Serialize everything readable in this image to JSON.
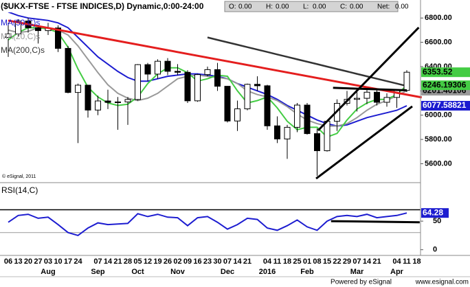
{
  "header": {
    "title": "($UKX-FTSE - FTSE INDICES,D) Dynamic,0:00-24:00",
    "quote": [
      {
        "name": "O:",
        "value": {
          "value": 0,
          "label": "0.00"
        }
      },
      {
        "name": "H:",
        "value": {
          "value": 0,
          "label": "0.00"
        }
      },
      {
        "name": "L:",
        "value": {
          "value": 0,
          "label": "0.00"
        }
      },
      {
        "name": "C:",
        "value": {
          "value": 0,
          "label": "0.00"
        }
      },
      {
        "name": "Net:",
        "value": {
          "value": 0,
          "label": "0.00"
        }
      }
    ]
  },
  "x_axis": {
    "categories": [
      "06",
      "13",
      "20",
      "27",
      "03",
      "10",
      "17",
      "24",
      null,
      "07",
      "14",
      "21",
      "28",
      "05",
      "12",
      "19",
      "26",
      "02",
      "09",
      "16",
      "23",
      "30",
      "07",
      "14",
      "21",
      null,
      "04",
      "11",
      "18",
      "25",
      "01",
      "08",
      "15",
      "22",
      "29",
      "07",
      "14",
      "21",
      null,
      "04",
      "11",
      "18"
    ],
    "month_labels": [
      null,
      null,
      null,
      null,
      "Aug",
      null,
      null,
      null,
      null,
      "Sep",
      null,
      null,
      null,
      "Oct",
      null,
      null,
      null,
      "Nov",
      null,
      null,
      null,
      null,
      "Dec",
      null,
      null,
      null,
      "2016",
      null,
      null,
      null,
      "Feb",
      null,
      null,
      null,
      null,
      "Mar",
      null,
      null,
      null,
      "Apr",
      null,
      null
    ]
  },
  "chart_data": [
    {
      "type": "candlestick",
      "credit": "© eSignal, 2011",
      "up_color": "#ffffff",
      "down_color": "#000000",
      "open": [
        6640,
        6670,
        6775,
        6720,
        6696,
        6718,
        6550,
        6187,
        6247,
        6042,
        6117,
        6105,
        6109,
        6129,
        6416,
        6338,
        6444,
        6361,
        6353,
        6118,
        6334,
        6375,
        6238,
        5952,
        6052,
        6254,
        6242,
        5912,
        5804,
        5900,
        6083,
        5848,
        5707,
        5950,
        6097,
        6130,
        6139,
        6189,
        6106,
        6146,
        6204,
        null
      ],
      "high": [
        6760,
        6790,
        6800,
        6730,
        6760,
        6740,
        6570,
        6260,
        6250,
        6160,
        6210,
        6150,
        6150,
        6420,
        6430,
        6460,
        6470,
        6420,
        6370,
        6340,
        6400,
        6430,
        6240,
        6120,
        6260,
        6320,
        6250,
        5990,
        5920,
        6100,
        6100,
        5890,
        5960,
        6130,
        6200,
        6190,
        6220,
        6210,
        6180,
        6210,
        6370,
        null
      ],
      "low": [
        6480,
        6650,
        6680,
        6590,
        6660,
        6520,
        6180,
        5770,
        5980,
        6000,
        6050,
        5880,
        5920,
        6120,
        6280,
        6300,
        6330,
        6330,
        6100,
        6110,
        6320,
        6200,
        5940,
        5870,
        6040,
        6200,
        5880,
        5770,
        5640,
        5860,
        5840,
        5500,
        5700,
        5870,
        6080,
        6030,
        6090,
        6080,
        6070,
        6060,
        6190,
        null
      ],
      "close": [
        6670,
        6775,
        6720,
        6696,
        6718,
        6550,
        6187,
        6247,
        6042,
        6117,
        6105,
        6109,
        6129,
        6416,
        6338,
        6444,
        6361,
        6353,
        6118,
        6334,
        6375,
        6238,
        5952,
        6052,
        6254,
        6242,
        5912,
        5804,
        5900,
        6083,
        5848,
        5707,
        5950,
        6097,
        6130,
        6139,
        6189,
        6106,
        6146,
        6204,
        6353.52,
        null
      ],
      "series": [
        {
          "name": "MA(50,C)s",
          "color": "#1c1cd0",
          "values": [
            6850,
            6820,
            6800,
            6790,
            6780,
            6760,
            6720,
            6640,
            6560,
            6480,
            6420,
            6360,
            6310,
            6280,
            6280,
            6300,
            6320,
            6330,
            6340,
            6340,
            6330,
            6320,
            6300,
            6260,
            6230,
            6200,
            6170,
            6130,
            6080,
            6040,
            6000,
            5960,
            5930,
            5910,
            5920,
            5950,
            5980,
            6000,
            6020,
            6040,
            6077.58821,
            null
          ]
        },
        {
          "name": "MA(20,C)s",
          "color": "#999999",
          "values": [
            6700,
            6680,
            6690,
            6720,
            6720,
            6700,
            6660,
            6570,
            6460,
            6350,
            6250,
            6180,
            6140,
            6120,
            6140,
            6180,
            6240,
            6300,
            6320,
            6330,
            6320,
            6310,
            6300,
            6260,
            6200,
            6170,
            6150,
            6120,
            6070,
            6010,
            5960,
            5930,
            5910,
            5910,
            5930,
            5980,
            6040,
            6090,
            6120,
            6160,
            6201.40106,
            null
          ]
        },
        {
          "name": "MA(200,C)s",
          "color": "#333333",
          "values": [
            null,
            null,
            null,
            null,
            null,
            null,
            null,
            null,
            null,
            null,
            null,
            null,
            null,
            null,
            null,
            null,
            null,
            null,
            null,
            null,
            6640,
            6620,
            6600,
            6580,
            6560,
            6540,
            6520,
            6500,
            6480,
            6460,
            6440,
            6420,
            6400,
            6380,
            6360,
            6340,
            6320,
            6300,
            6280,
            6260,
            6240,
            null
          ]
        },
        {
          "color": "#44cc44",
          "values": [
            6620,
            6680,
            6720,
            6720,
            6710,
            6680,
            6560,
            6380,
            6230,
            6150,
            6100,
            6080,
            6090,
            6150,
            6260,
            6340,
            6390,
            6390,
            6350,
            6280,
            6300,
            6330,
            6320,
            6200,
            6100,
            6120,
            6150,
            6060,
            5950,
            5880,
            5900,
            5900,
            5820,
            5850,
            5960,
            6050,
            6100,
            6130,
            6130,
            6170,
            6246.19306,
            null
          ]
        }
      ],
      "trendlines": [
        {
          "color": "#e41e1e",
          "points": [
            [
              0,
              6779
            ],
            [
              41.5,
              6146
            ]
          ]
        },
        {
          "color": "#000000",
          "points": [
            [
              31.1,
              5874
            ],
            [
              41.2,
              6722
            ]
          ]
        },
        {
          "color": "#000000",
          "points": [
            [
              30.9,
              5478
            ],
            [
              40.55,
              6072
            ]
          ]
        },
        {
          "color": "#000000",
          "points": [
            [
              32.6,
              6225
            ],
            [
              40,
              6205
            ]
          ]
        }
      ],
      "ylim": [
        5450,
        6920
      ],
      "yticks": [
        {
          "value": 5600,
          "label": "5600.00"
        },
        {
          "value": 5800,
          "label": "5800.00"
        },
        {
          "value": 6000,
          "label": "6000.00"
        },
        {
          "value": 6200,
          "label": "6200.00"
        },
        {
          "value": 6400,
          "label": "6400.00"
        },
        {
          "value": 6600,
          "label": "6600.00"
        },
        {
          "value": 6800,
          "label": "6800.00"
        }
      ]
    },
    {
      "type": "line",
      "title": "RSI(14,C)",
      "series": [
        {
          "color": "#1c1cd0",
          "values": [
            48,
            60,
            62,
            55,
            57,
            44,
            30,
            25,
            38,
            47,
            44,
            45,
            46,
            63,
            58,
            62,
            57,
            56,
            42,
            56,
            58,
            48,
            36,
            44,
            55,
            53,
            38,
            34,
            42,
            52,
            40,
            34,
            50,
            58,
            60,
            58,
            62,
            56,
            58,
            60,
            64.28,
            null
          ]
        }
      ],
      "levels": [
        70,
        30
      ],
      "trendlines": [
        {
          "color": "#000000",
          "points": [
            [
              32.4,
              50
            ],
            [
              41.3,
              48
            ]
          ]
        }
      ],
      "ylim": [
        -10,
        115
      ],
      "yticks": [
        0,
        50
      ]
    }
  ],
  "footer": {
    "left": "Powered by eSignal",
    "right": "www.esignal.com"
  }
}
